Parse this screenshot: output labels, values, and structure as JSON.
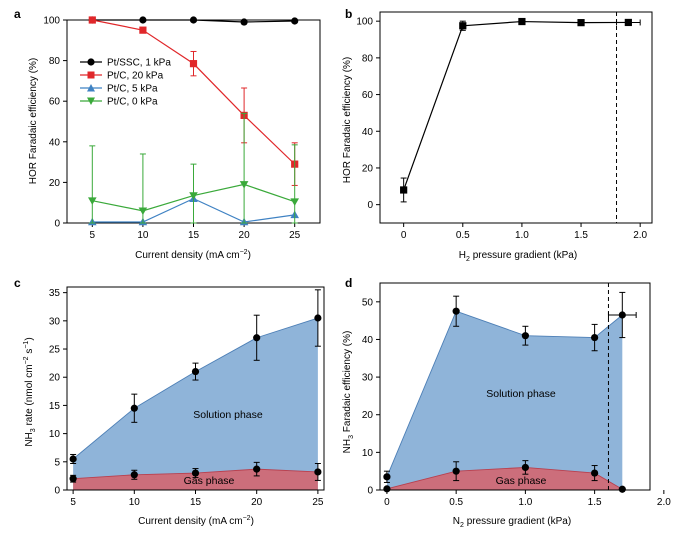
{
  "chart_data": [
    {
      "panel": "a",
      "type": "line",
      "xlabel": "Current density (mA cm",
      "xlabel_sup": "−2",
      "xlabel_tail": ")",
      "ylabel": "HOR Faradaic efficiency (%)",
      "xlim": [
        2.5,
        27.5
      ],
      "ylim": [
        0,
        100
      ],
      "xticks": [
        5,
        10,
        15,
        20,
        25
      ],
      "yticks": [
        0,
        20,
        40,
        60,
        80,
        100
      ],
      "legend_position": "center-left",
      "series": [
        {
          "name": "Pt/SSC, 1 kPa",
          "color": "#000000",
          "marker": "circle",
          "x": [
            5,
            10,
            15,
            20,
            25
          ],
          "y": [
            100,
            100,
            100,
            99,
            99.5
          ],
          "err": [
            0,
            0,
            0,
            0,
            0
          ]
        },
        {
          "name": "Pt/C, 20 kPa",
          "color": "#e0272a",
          "marker": "square",
          "x": [
            5,
            10,
            15,
            20,
            25
          ],
          "y": [
            100,
            95,
            78.5,
            53,
            29
          ],
          "err": [
            0,
            0,
            6,
            13.5,
            10.5
          ]
        },
        {
          "name": "Pt/C, 5 kPa",
          "color": "#3f82c3",
          "marker": "triangle-up",
          "x": [
            5,
            10,
            15,
            20,
            25
          ],
          "y": [
            0.5,
            0.5,
            12,
            0.5,
            4
          ],
          "err": [
            0,
            0,
            0,
            0,
            0
          ]
        },
        {
          "name": "Pt/C, 0 kPa",
          "color": "#3aa93a",
          "marker": "triangle-down",
          "x": [
            5,
            10,
            15,
            20,
            25
          ],
          "y": [
            11,
            6,
            13.5,
            19,
            10.5
          ],
          "err": [
            27,
            28,
            15.5,
            35,
            28
          ]
        }
      ]
    },
    {
      "panel": "b",
      "type": "line",
      "xlabel": "H",
      "xlabel_sub": "2",
      "xlabel_tail": " pressure gradient (kPa)",
      "ylabel": "HOR Faradaic efficiency (%)",
      "xlim": [
        -0.2,
        2.1
      ],
      "ylim": [
        -10,
        105
      ],
      "xticks": [
        0.0,
        0.5,
        1.0,
        1.5,
        2.0
      ],
      "xtick_labels": [
        "0",
        "0.5",
        "1.0",
        "1.5",
        "2.0"
      ],
      "yticks": [
        0,
        20,
        40,
        60,
        80,
        100
      ],
      "vline_x": 1.8,
      "series": [
        {
          "name": "HOR",
          "color": "#000000",
          "marker": "square",
          "x": [
            0,
            0.5,
            1.0,
            1.5,
            1.9
          ],
          "y": [
            8,
            97.5,
            99.8,
            99.2,
            99.3
          ],
          "err": [
            6.5,
            2.5,
            0,
            0,
            1
          ],
          "xerr": [
            0,
            0,
            0,
            0,
            0.1
          ]
        }
      ]
    },
    {
      "panel": "c",
      "type": "area",
      "xlabel": "Current density (mA cm",
      "xlabel_sup": "−2",
      "xlabel_tail": ")",
      "ylabel": "NH3 rate (nmol cm−2 s−1)",
      "xlim": [
        4.5,
        25.5
      ],
      "ylim": [
        0,
        36
      ],
      "xticks": [
        5,
        10,
        15,
        20,
        25
      ],
      "yticks": [
        0,
        5,
        10,
        15,
        20,
        25,
        30,
        35
      ],
      "series": [
        {
          "name": "Solution phase",
          "color": "#8fb4d9",
          "x": [
            5,
            10,
            15,
            20,
            25
          ],
          "y": [
            5.5,
            14.5,
            21,
            27,
            30.5
          ],
          "err": [
            0.8,
            2.5,
            1.5,
            4,
            5
          ]
        },
        {
          "name": "Gas phase",
          "color": "#cc6e7b",
          "x": [
            5,
            10,
            15,
            20,
            25
          ],
          "y": [
            2,
            2.7,
            3,
            3.7,
            3.2
          ],
          "err": [
            0.6,
            0.8,
            0.8,
            1.2,
            1.5
          ]
        }
      ],
      "annotations": [
        "Solution phase",
        "Gas phase"
      ]
    },
    {
      "panel": "d",
      "type": "area",
      "xlabel": "N",
      "xlabel_sub": "2",
      "xlabel_tail": " pressure gradient (kPa)",
      "ylabel": "NH3 Faradaic efficiency (%)",
      "xlim": [
        -0.05,
        1.9
      ],
      "ylim": [
        0,
        55
      ],
      "xticks": [
        0.0,
        0.5,
        1.0,
        1.5,
        2.0
      ],
      "xtick_labels": [
        "0",
        "0.5",
        "1.0",
        "1.5",
        "2.0"
      ],
      "yticks": [
        0,
        10,
        20,
        30,
        40,
        50
      ],
      "vline_x": 1.6,
      "series": [
        {
          "name": "Solution phase",
          "color": "#8fb4d9",
          "x": [
            0,
            0.5,
            1.0,
            1.5,
            1.7
          ],
          "y": [
            3.5,
            47.5,
            41,
            40.5,
            46.5
          ],
          "err": [
            1.5,
            4,
            2.5,
            3.5,
            6
          ],
          "xerr": [
            0,
            0,
            0,
            0,
            0.1
          ]
        },
        {
          "name": "Gas phase",
          "color": "#cc6e7b",
          "x": [
            0,
            0.5,
            1.0,
            1.5,
            1.7
          ],
          "y": [
            0.3,
            5,
            6,
            4.5,
            0.2
          ],
          "err": [
            0,
            2.5,
            1.8,
            2,
            0
          ]
        }
      ],
      "annotations": [
        "Solution phase",
        "Gas phase"
      ]
    }
  ],
  "panels": {
    "a": {
      "label": "a",
      "legend": [
        "Pt/SSC, 1 kPa",
        "Pt/C, 20 kPa",
        "Pt/C, 5 kPa",
        "Pt/C, 0 kPa"
      ],
      "xlabel": "Current density (mA cm",
      "xlabel_sup": "−2",
      "xlabel_tail": ")",
      "ylabel": "HOR Faradaic efficiency (%)"
    },
    "b": {
      "label": "b",
      "xlabel": "H",
      "xlabel_sub": "2",
      "xlabel_tail": " pressure gradient (kPa)",
      "ylabel": "HOR Faradaic efficiency (%)"
    },
    "c": {
      "label": "c",
      "xlabel": "Current density (mA cm",
      "xlabel_sup": "−2",
      "xlabel_tail": ")",
      "ylabel_pre": "NH",
      "ylabel_sub": "3",
      "ylabel_mid": " rate (nmol cm",
      "ylabel_sup1": "−2",
      "ylabel_mid2": " s",
      "ylabel_sup2": "−1",
      "ylabel_tail": ")",
      "solution_label": "Solution phase",
      "gas_label": "Gas phase"
    },
    "d": {
      "label": "d",
      "xlabel": "N",
      "xlabel_sub": "2",
      "xlabel_tail": " pressure gradient (kPa)",
      "ylabel_pre": "NH",
      "ylabel_sub": "3",
      "ylabel_tail": " Faradaic efficiency (%)",
      "solution_label": "Solution phase",
      "gas_label": "Gas phase"
    }
  }
}
